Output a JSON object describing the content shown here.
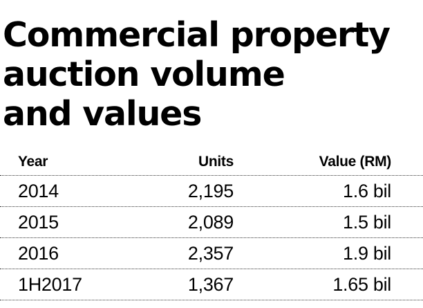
{
  "chart_data": {
    "type": "table",
    "title_lines": [
      "Commercial property",
      "auction volume",
      "and values"
    ],
    "columns": [
      "Year",
      "Units",
      "Value (RM)"
    ],
    "rows": [
      {
        "year": "2014",
        "units": "2,195",
        "value": "1.6 bil"
      },
      {
        "year": "2015",
        "units": "2,089",
        "value": "1.5 bil"
      },
      {
        "year": "2016",
        "units": "2,357",
        "value": "1.9 bil"
      },
      {
        "year": "1H2017",
        "units": "1,367",
        "value": "1.65 bil"
      }
    ]
  }
}
